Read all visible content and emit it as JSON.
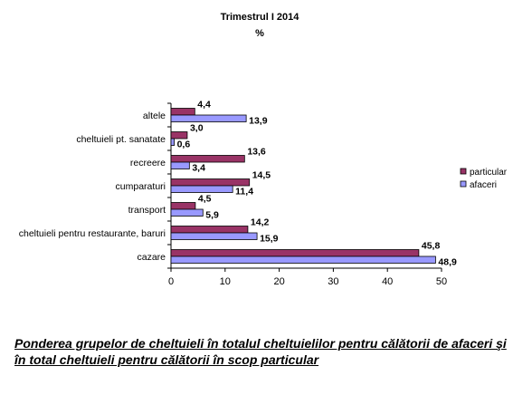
{
  "chart_data": {
    "type": "bar",
    "orientation": "horizontal",
    "title": "Trimestrul I 2014",
    "subtitle": "%",
    "categories": [
      "altele",
      "cheltuieli pt. sanatate",
      "recreere",
      "cumparaturi",
      "transport",
      "cheltuieli pentru restaurante, baruri",
      "cazare"
    ],
    "series": [
      {
        "name": "particular",
        "color": "#993366",
        "values": [
          4.4,
          3.0,
          13.6,
          14.5,
          4.5,
          14.2,
          45.8
        ],
        "labels": [
          "4,4",
          "3,0",
          "13,6",
          "14,5",
          "4,5",
          "14,2",
          "45,8"
        ]
      },
      {
        "name": "afaceri",
        "color": "#9999ff",
        "values": [
          13.9,
          0.6,
          3.4,
          11.4,
          5.9,
          15.9,
          48.9
        ],
        "labels": [
          "13,9",
          "0,6",
          "3,4",
          "11,4",
          "5,9",
          "15,9",
          "48,9"
        ]
      }
    ],
    "xlim": [
      0,
      50
    ],
    "xticks": [
      "0",
      "10",
      "20",
      "30",
      "40",
      "50"
    ],
    "xlabel": "",
    "ylabel": "",
    "grid": false,
    "legend_position": "right"
  },
  "caption": "Ponderea grupelor de cheltuieli în totalul cheltuielilor pentru călătorii de afaceri şi în total cheltuieli pentru călătorii în scop particular"
}
